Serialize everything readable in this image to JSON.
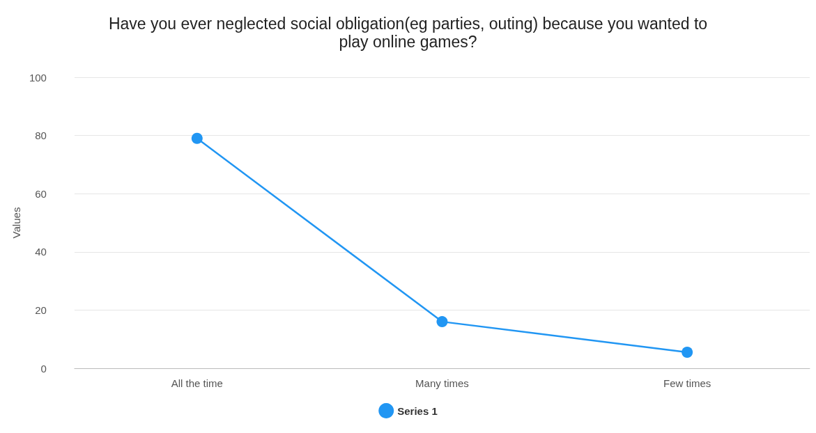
{
  "chart_data": {
    "type": "line",
    "title": "Have you ever neglected social obligation(eg parties, outing) because you wanted to\nplay online games?",
    "ylabel": "Values",
    "categories": [
      "All the time",
      "Many times",
      "Few times"
    ],
    "series": [
      {
        "name": "Series 1",
        "color": "#2196f3",
        "values": [
          79,
          16,
          5.5
        ]
      }
    ],
    "ylim": [
      0,
      100
    ],
    "yticks": [
      0,
      20,
      40,
      60,
      80,
      100
    ],
    "grid": "y",
    "legend": "bottom",
    "marker": "circle",
    "line_style": "solid"
  }
}
